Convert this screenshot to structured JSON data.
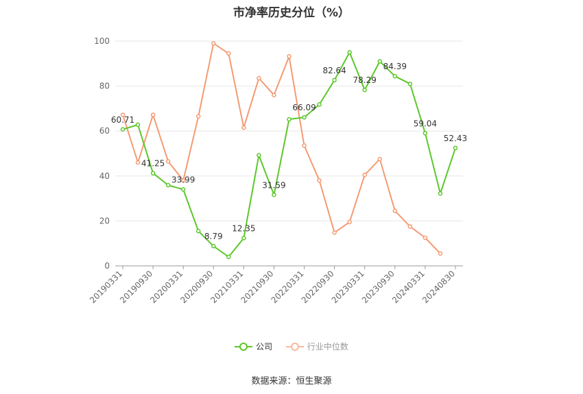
{
  "chart_data": {
    "type": "line",
    "title": "市净率历史分位（%）",
    "ylim": [
      0,
      100
    ],
    "yticks": [
      0,
      20,
      40,
      60,
      80,
      100
    ],
    "grid": true,
    "legend_position": "bottom-center",
    "x": [
      "20190331",
      "20190630",
      "20190930",
      "20191231",
      "20200331",
      "20200630",
      "20200930",
      "20201231",
      "20210331",
      "20210630",
      "20210930",
      "20211231",
      "20220331",
      "20220630",
      "20220930",
      "20221231",
      "20230331",
      "20230630",
      "20230930",
      "20231231",
      "20240331",
      "20240630",
      "20240830"
    ],
    "x_tick_labels": [
      "20190331",
      "20190930",
      "20200331",
      "20200930",
      "20210331",
      "20210930",
      "20220331",
      "20220930",
      "20230331",
      "20230930",
      "20240331",
      "20240830"
    ],
    "series": [
      {
        "name": "公司",
        "color": "#5bc72a",
        "values": [
          60.71,
          62.8,
          41.25,
          35.9,
          33.99,
          15.5,
          8.79,
          4.0,
          12.35,
          49.2,
          31.59,
          65.2,
          66.09,
          71.8,
          82.64,
          95.0,
          78.29,
          91.0,
          84.39,
          81.0,
          59.04,
          32.2,
          52.43
        ],
        "data_labels": [
          {
            "index": 0,
            "text": "60.71"
          },
          {
            "index": 2,
            "text": "41.25"
          },
          {
            "index": 4,
            "text": "33.99"
          },
          {
            "index": 6,
            "text": "8.79"
          },
          {
            "index": 8,
            "text": "12.35"
          },
          {
            "index": 10,
            "text": "31.59"
          },
          {
            "index": 12,
            "text": "66.09"
          },
          {
            "index": 14,
            "text": "82.64"
          },
          {
            "index": 16,
            "text": "78.29"
          },
          {
            "index": 18,
            "text": "84.39"
          },
          {
            "index": 20,
            "text": "59.04"
          },
          {
            "index": 22,
            "text": "52.43"
          }
        ]
      },
      {
        "name": "行业中位数",
        "color": "#f59a72",
        "values": [
          67.2,
          46.0,
          67.2,
          46.5,
          38.0,
          66.5,
          99.0,
          94.5,
          61.5,
          83.5,
          76.0,
          93.2,
          53.5,
          38.0,
          14.8,
          19.5,
          40.5,
          47.5,
          24.5,
          17.5,
          12.5,
          5.5,
          null
        ]
      }
    ]
  },
  "source": "数据来源：恒生聚源"
}
